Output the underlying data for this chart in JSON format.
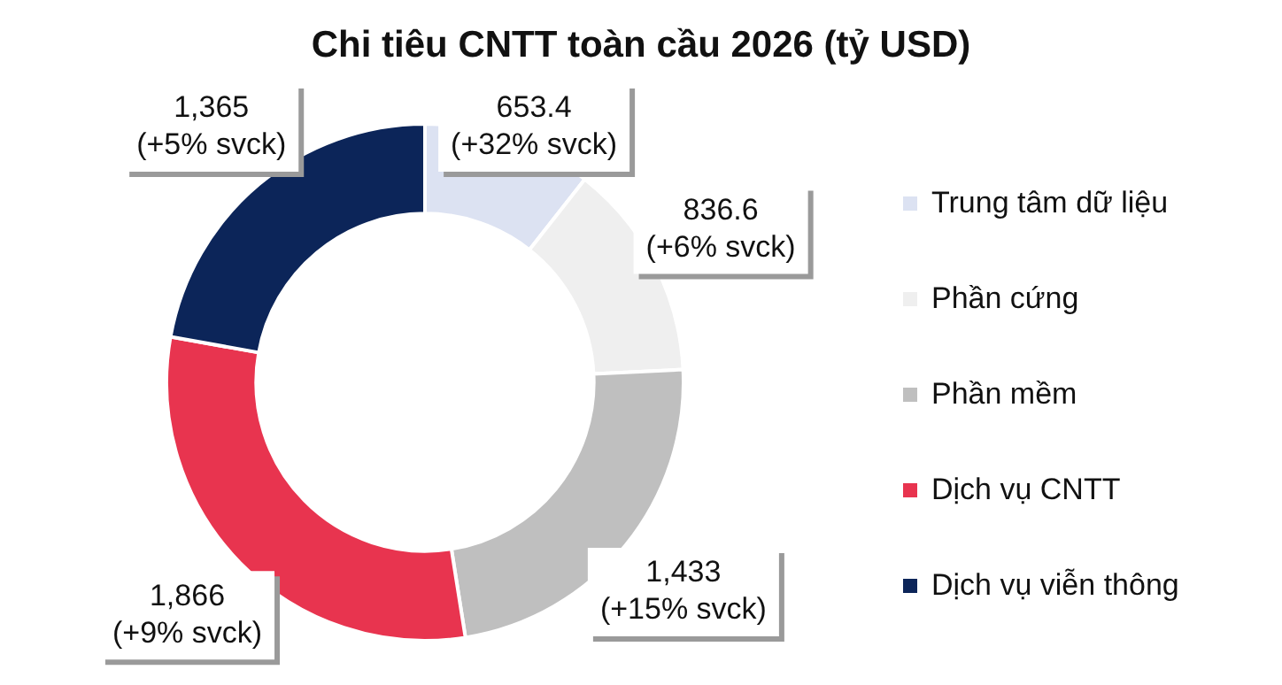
{
  "chart_data": {
    "type": "donut",
    "title": "Chi tiêu CNTT toàn cầu 2026 (tỷ USD)",
    "categories": [
      "Trung tâm dữ liệu",
      "Phần cứng",
      "Phần mềm",
      "Dịch vụ CNTT",
      "Dịch vụ viễn thông"
    ],
    "values": [
      653.4,
      836.6,
      1433,
      1866,
      1365
    ],
    "colors": [
      "#dce2f2",
      "#efefef",
      "#bfbfbf",
      "#e8344f",
      "#0c2559"
    ],
    "value_labels": [
      "653.4\n(+32% svck)",
      "836.6\n(+6% svck)",
      "1,433\n(+15% svck)",
      "1,866\n(+9% svck)",
      "1,365\n(+5% svck)"
    ],
    "legend": "right"
  }
}
